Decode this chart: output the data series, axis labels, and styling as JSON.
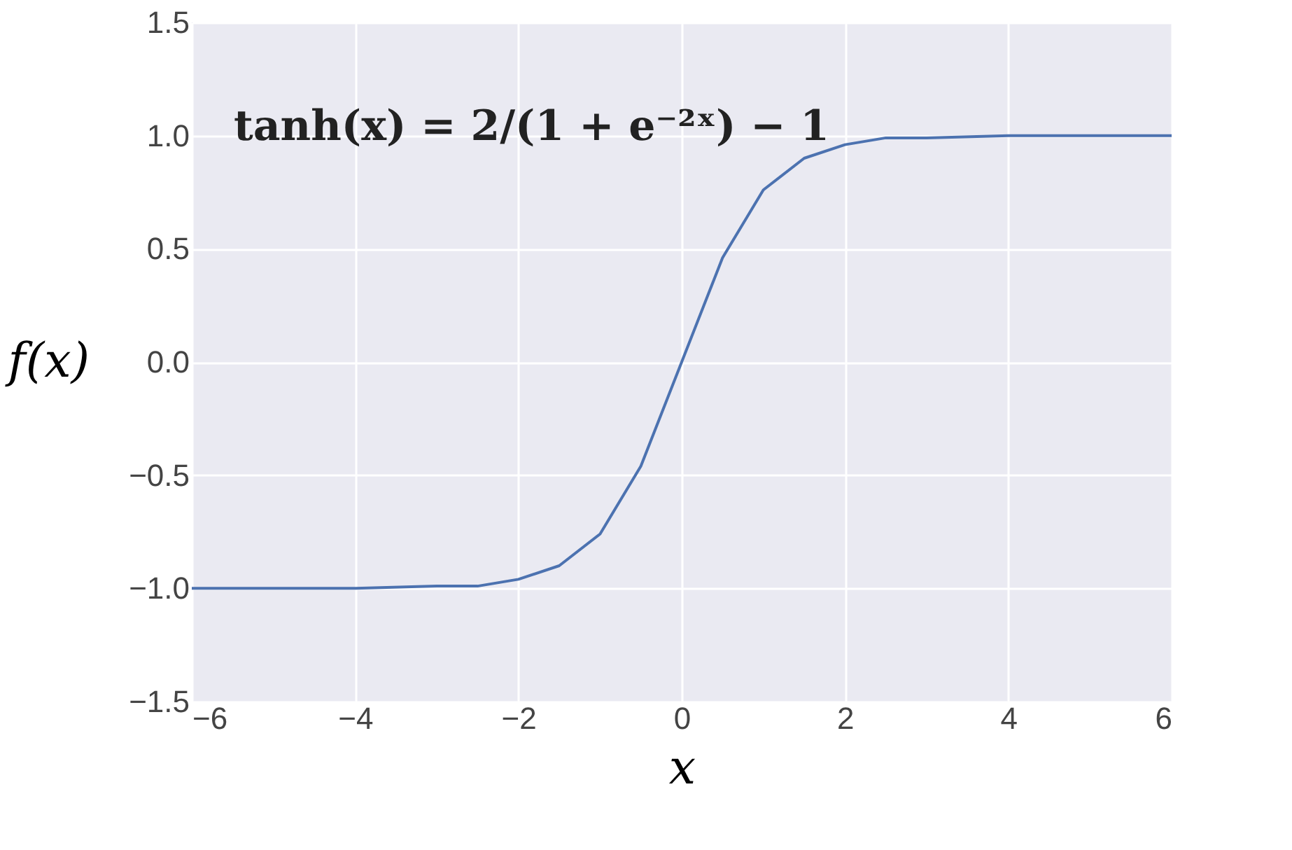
{
  "chart_data": {
    "type": "line",
    "xlabel": "x",
    "ylabel": "f(x)",
    "annotations": [
      "tanh(x) = 2/(1 + e⁻²ˣ) − 1"
    ],
    "x": [
      -6,
      -5,
      -4,
      -3,
      -2.5,
      -2,
      -1.5,
      -1,
      -0.5,
      0,
      0.5,
      1,
      1.5,
      2,
      2.5,
      3,
      4,
      5,
      6
    ],
    "series": [
      {
        "color": "#4c72b0",
        "values": [
          -1.0,
          -1.0,
          -1.0,
          -0.99,
          -0.99,
          -0.96,
          -0.9,
          -0.76,
          -0.46,
          0.0,
          0.46,
          0.76,
          0.9,
          0.96,
          0.99,
          0.99,
          1.0,
          1.0,
          1.0
        ]
      }
    ],
    "xlim": [
      -6,
      6
    ],
    "ylim": [
      -1.5,
      1.5
    ],
    "xticks": [
      {
        "value": -6,
        "label": "−6"
      },
      {
        "value": -4,
        "label": "−4"
      },
      {
        "value": -2,
        "label": "−2"
      },
      0,
      2,
      4,
      6
    ],
    "yticks": [
      {
        "value": -1.5,
        "label": "−1.5"
      },
      {
        "value": -1.0,
        "label": "−1.0"
      },
      {
        "value": -0.5,
        "label": "−0.5"
      },
      {
        "value": 0,
        "label": "0.0"
      },
      {
        "value": 0.5,
        "label": "0.5"
      },
      {
        "value": 1.0,
        "label": "1.0"
      },
      {
        "value": 1.5,
        "label": "1.5"
      }
    ],
    "grid": true,
    "marker": "none",
    "line_style": "solid"
  }
}
